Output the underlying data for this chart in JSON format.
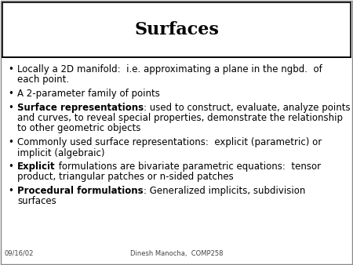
{
  "title": "Surfaces",
  "background_color": "#ffffff",
  "title_color": "#000000",
  "text_color": "#000000",
  "footer_left": "09/16/02",
  "footer_center": "Dinesh Manocha,  COMP258",
  "bullet_items": [
    {
      "bold_prefix": "",
      "lines": [
        "Locally a 2D manifold:  i.e. approximating a plane in the ngbd.  of",
        "each point."
      ]
    },
    {
      "bold_prefix": "",
      "lines": [
        "A 2-parameter family of points"
      ]
    },
    {
      "bold_prefix": "Surface representations",
      "bold_suffix": ": used to construct, evaluate, analyze points",
      "lines": [
        "and curves, to reveal special properties, demonstrate the relationship",
        "to other geometric objects"
      ]
    },
    {
      "bold_prefix": "",
      "lines": [
        "Commonly used surface representations:  explicit (parametric) or",
        "implicit (algebraic)"
      ]
    },
    {
      "bold_prefix": "Explicit",
      "bold_suffix": " formulations are bivariate parametric equations:  tensor",
      "lines": [
        "product, triangular patches or n-sided patches"
      ]
    },
    {
      "bold_prefix": "Procedural formulations",
      "bold_suffix": ": Generalized implicits, subdivision",
      "lines": [
        "surfaces"
      ]
    }
  ],
  "title_fontsize": 16,
  "body_fontsize": 8.5,
  "footer_fontsize": 6.0
}
